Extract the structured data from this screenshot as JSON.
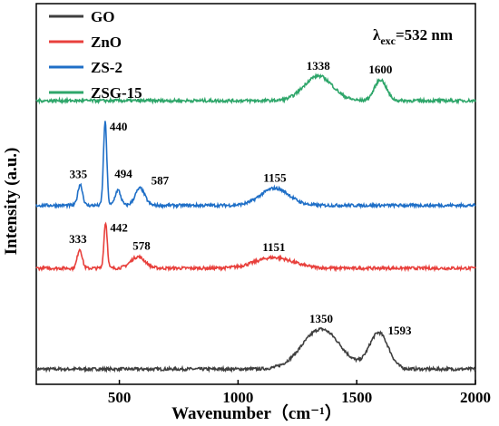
{
  "chart_data": {
    "type": "line",
    "xlabel": "Wavenumber（cm⁻¹）",
    "ylabel": "Intensity (a.u.)",
    "xlim": [
      150,
      2000
    ],
    "xticks": [
      "500",
      "1000",
      "1500",
      "2000"
    ],
    "xtick_values": [
      500,
      1000,
      1500,
      2000
    ],
    "legend_position": "top-left",
    "annotation": {
      "prefix": "λ",
      "subscript": "exc",
      "suffix": "=532 nm"
    },
    "series": [
      {
        "name": "GO",
        "color": "#3f3f3f",
        "baseline": 0.04,
        "peaks": [
          {
            "x": 1350,
            "height": 0.105,
            "width": 80,
            "label": "1350"
          },
          {
            "x": 1593,
            "height": 0.095,
            "width": 40,
            "label": "1593"
          }
        ]
      },
      {
        "name": "ZnO",
        "color": "#e8403c",
        "baseline": 0.305,
        "peaks": [
          {
            "x": 333,
            "height": 0.05,
            "width": 10,
            "label": "333"
          },
          {
            "x": 442,
            "height": 0.12,
            "width": 7,
            "label": "442"
          },
          {
            "x": 578,
            "height": 0.03,
            "width": 30,
            "label": "578"
          },
          {
            "x": 1151,
            "height": 0.028,
            "width": 80,
            "label": "1151"
          }
        ]
      },
      {
        "name": "ZS-2",
        "color": "#1f6fc7",
        "baseline": 0.47,
        "peaks": [
          {
            "x": 335,
            "height": 0.055,
            "width": 10,
            "label": "335"
          },
          {
            "x": 440,
            "height": 0.22,
            "width": 7,
            "label": "440"
          },
          {
            "x": 494,
            "height": 0.04,
            "width": 12,
            "label": "494"
          },
          {
            "x": 587,
            "height": 0.045,
            "width": 20,
            "label": "587"
          },
          {
            "x": 1155,
            "height": 0.045,
            "width": 60,
            "label": "1155"
          }
        ]
      },
      {
        "name": "ZSG-15",
        "color": "#2ea66a",
        "baseline": 0.745,
        "peaks": [
          {
            "x": 1338,
            "height": 0.065,
            "width": 60,
            "label": "1338"
          },
          {
            "x": 1600,
            "height": 0.055,
            "width": 25,
            "label": "1600"
          }
        ]
      }
    ]
  }
}
